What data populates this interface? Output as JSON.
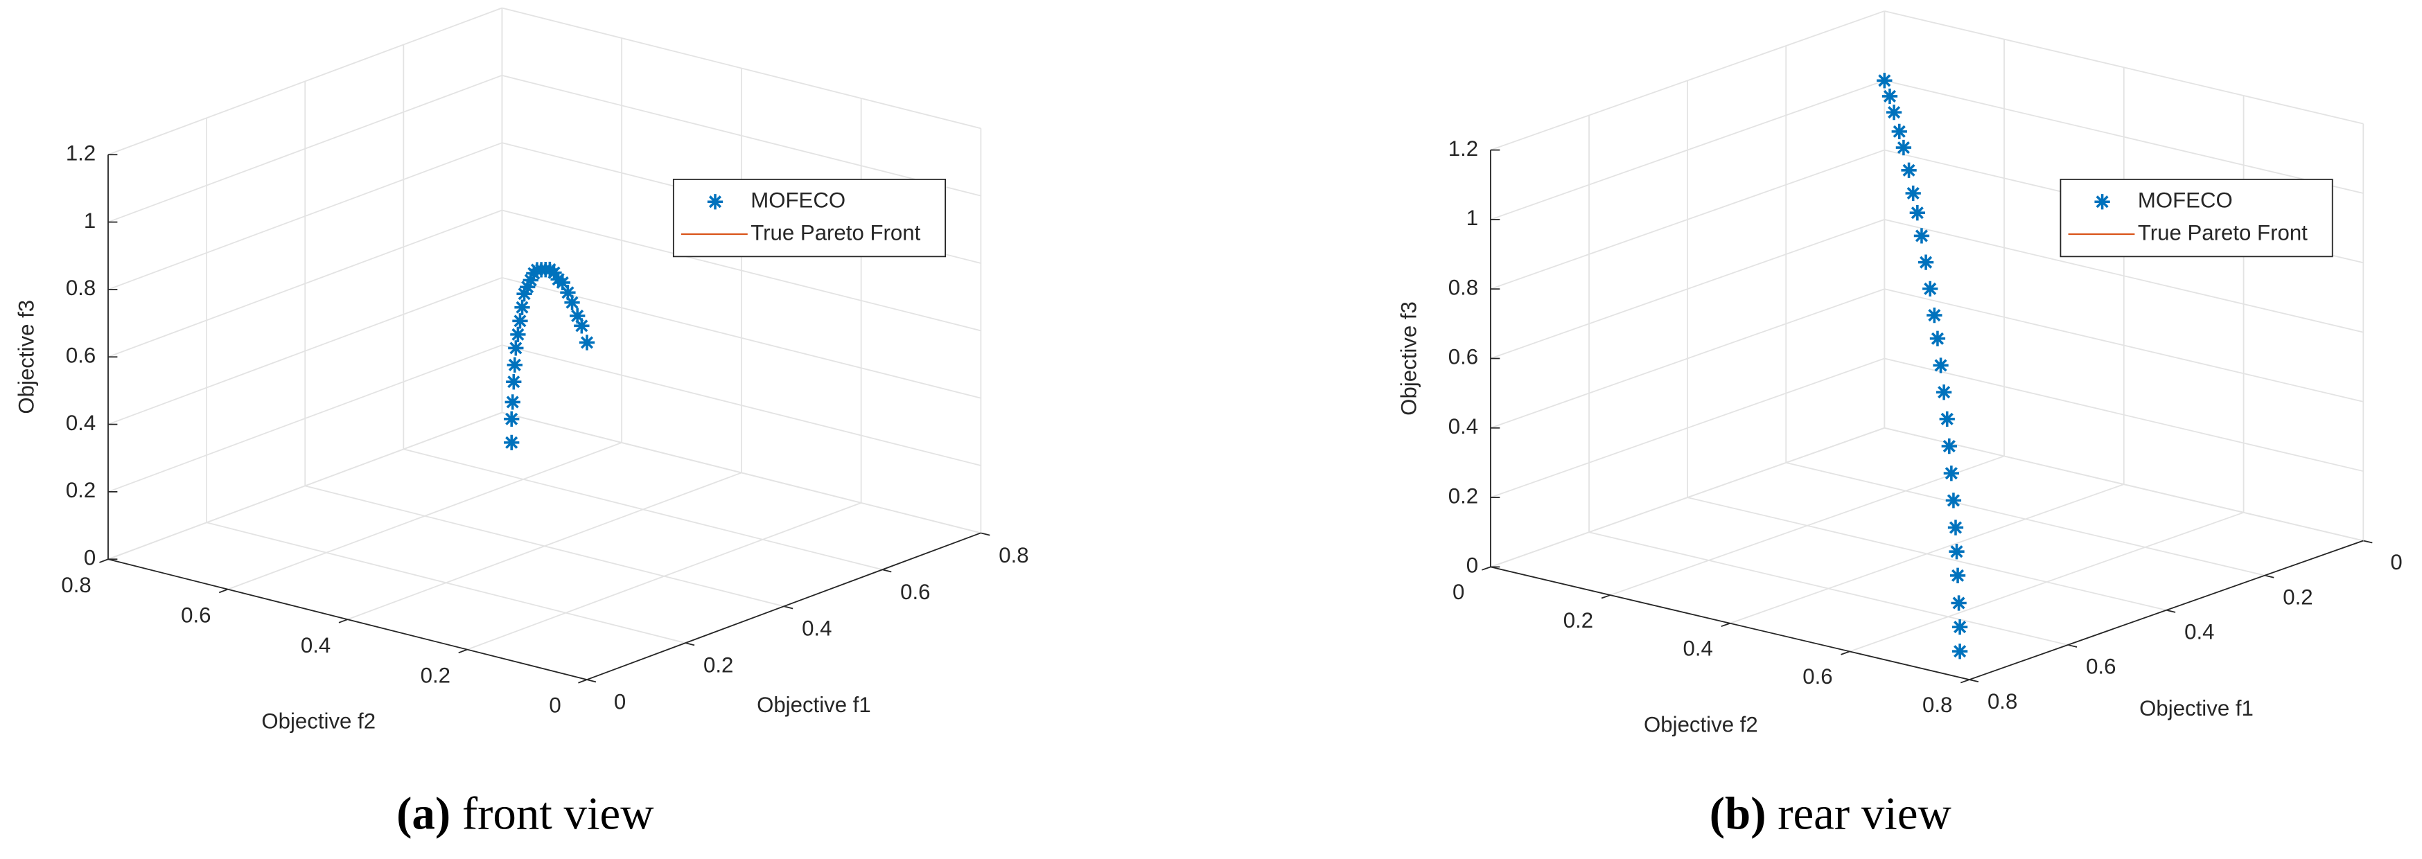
{
  "chart_data": [
    {
      "type": "scatter3d",
      "xlabel": "Objective f1",
      "ylabel": "Objective f2",
      "zlabel": "Objective f3",
      "caption_label": "(a)",
      "caption_text": "front view",
      "xlim": [
        0,
        0.8
      ],
      "ylim": [
        0,
        0.8
      ],
      "zlim": [
        0,
        1.2
      ],
      "xticks": [
        0,
        0.2,
        0.4,
        0.6,
        0.8
      ],
      "yticks": [
        0,
        0.2,
        0.4,
        0.6,
        0.8
      ],
      "zticks": [
        0,
        0.2,
        0.4,
        0.6,
        0.8,
        1,
        1.2
      ],
      "grid": true,
      "series": [
        {
          "name": "MOFECO",
          "color": "#0072BD",
          "x": [
            0.71,
            0.71,
            0.7,
            0.69,
            0.68,
            0.67,
            0.65,
            0.63,
            0.61,
            0.59,
            0.56,
            0.53,
            0.5,
            0.47,
            0.43,
            0.39,
            0.35,
            0.31,
            0.27,
            0.23,
            0.18,
            0.14,
            0.09,
            0.05,
            0
          ],
          "y": [
            0.71,
            0.71,
            0.7,
            0.69,
            0.68,
            0.67,
            0.65,
            0.63,
            0.61,
            0.59,
            0.56,
            0.53,
            0.5,
            0.47,
            0.43,
            0.39,
            0.35,
            0.31,
            0.27,
            0.23,
            0.18,
            0.14,
            0.09,
            0.05,
            0
          ],
          "z": [
            0,
            0.07,
            0.13,
            0.2,
            0.26,
            0.32,
            0.38,
            0.44,
            0.5,
            0.56,
            0.61,
            0.66,
            0.71,
            0.75,
            0.79,
            0.83,
            0.87,
            0.9,
            0.92,
            0.95,
            0.97,
            0.98,
            0.99,
            1.0,
            1
          ]
        },
        {
          "name": "True Pareto Front",
          "color": "#D95319"
        }
      ]
    },
    {
      "type": "scatter3d",
      "xlabel": "Objective f1",
      "ylabel": "Objective f2",
      "zlabel": "Objective f3",
      "caption_label": "(b)",
      "caption_text": "rear view",
      "xlim": [
        0,
        0.8
      ],
      "ylim": [
        0,
        0.8
      ],
      "zlim": [
        0,
        1.2
      ],
      "xticks": [
        0,
        0.2,
        0.4,
        0.6,
        0.8
      ],
      "yticks": [
        0,
        0.2,
        0.4,
        0.6,
        0.8
      ],
      "zticks": [
        0,
        0.2,
        0.4,
        0.6,
        0.8,
        1,
        1.2
      ],
      "grid": true,
      "series": [
        {
          "name": "MOFECO",
          "color": "#0072BD",
          "x": [
            0.71,
            0.71,
            0.7,
            0.69,
            0.68,
            0.67,
            0.65,
            0.63,
            0.61,
            0.59,
            0.56,
            0.53,
            0.5,
            0.47,
            0.43,
            0.39,
            0.35,
            0.31,
            0.27,
            0.23,
            0.18,
            0.14,
            0.09,
            0.05,
            0
          ],
          "y": [
            0.71,
            0.71,
            0.7,
            0.69,
            0.68,
            0.67,
            0.65,
            0.63,
            0.61,
            0.59,
            0.56,
            0.53,
            0.5,
            0.47,
            0.43,
            0.39,
            0.35,
            0.31,
            0.27,
            0.23,
            0.18,
            0.14,
            0.09,
            0.05,
            0
          ],
          "z": [
            0,
            0.07,
            0.13,
            0.2,
            0.26,
            0.32,
            0.38,
            0.44,
            0.5,
            0.56,
            0.61,
            0.66,
            0.71,
            0.75,
            0.79,
            0.83,
            0.87,
            0.9,
            0.92,
            0.95,
            0.97,
            0.98,
            0.99,
            1.0,
            1
          ]
        },
        {
          "name": "True Pareto Front",
          "color": "#D95319"
        }
      ]
    }
  ]
}
